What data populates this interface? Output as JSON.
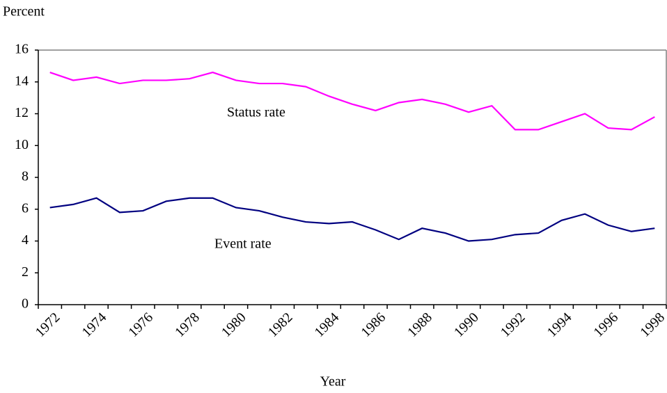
{
  "chart_data": {
    "type": "line",
    "y_label": "Percent",
    "x_label": "Year",
    "categories": [
      "1972",
      null,
      "1974",
      null,
      "1976",
      null,
      "1978",
      null,
      "1980",
      null,
      "1982",
      null,
      "1984",
      null,
      "1986",
      null,
      "1988",
      null,
      "1990",
      null,
      "1992",
      null,
      "1994",
      null,
      "1996",
      null,
      "1998"
    ],
    "series": [
      {
        "name": "Status rate",
        "color": "#ff00ff",
        "values": [
          14.6,
          14.1,
          14.3,
          13.9,
          14.1,
          14.1,
          14.2,
          14.6,
          14.1,
          13.9,
          13.9,
          13.7,
          13.1,
          12.6,
          12.2,
          12.7,
          12.9,
          12.6,
          12.1,
          12.5,
          11.0,
          11.0,
          11.5,
          12.0,
          11.1,
          11.0,
          11.8
        ]
      },
      {
        "name": "Event rate",
        "color": "#000080",
        "values": [
          6.1,
          6.3,
          6.7,
          5.8,
          5.9,
          6.5,
          6.7,
          6.7,
          6.1,
          5.9,
          5.5,
          5.2,
          5.1,
          5.2,
          4.7,
          4.1,
          4.8,
          4.5,
          4.0,
          4.1,
          4.4,
          4.5,
          5.3,
          5.7,
          5.0,
          4.6,
          4.8
        ]
      }
    ],
    "ylim": [
      0,
      16
    ],
    "yticks": [
      0,
      2,
      4,
      6,
      8,
      10,
      12,
      14,
      16
    ]
  }
}
